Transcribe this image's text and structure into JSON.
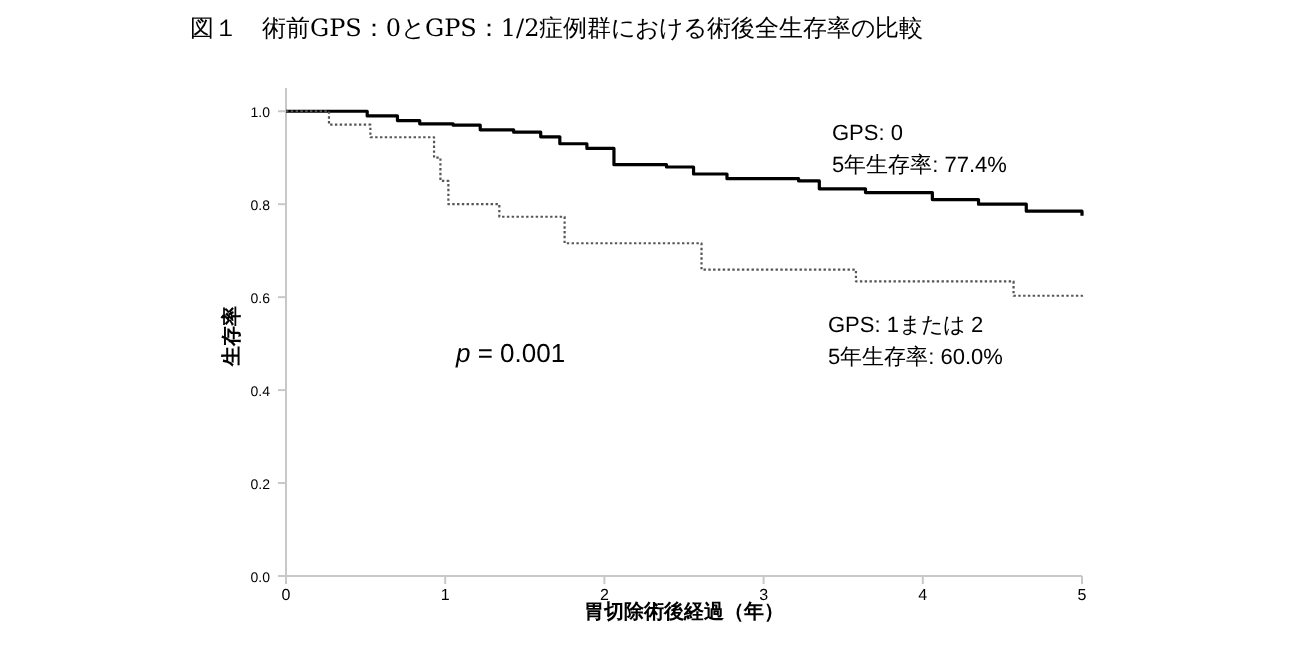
{
  "chart_data": {
    "type": "step",
    "title": "図１　術前GPS：0とGPS：1/2症例群における術後全生存率の比較",
    "xlabel": "胃切除術後経過（年）",
    "ylabel": "生存率",
    "xlim": [
      0,
      5
    ],
    "ylim": [
      0,
      1.05
    ],
    "xticks": [
      0,
      1,
      2,
      3,
      4,
      5
    ],
    "yticks": [
      {
        "value": 0,
        "label": "0.0"
      },
      {
        "value": 0.2,
        "label": "0.2"
      },
      {
        "value": 0.4,
        "label": "0.4"
      },
      {
        "value": 0.6,
        "label": "0.6"
      },
      {
        "value": 0.8,
        "label": "0.8"
      },
      {
        "value": 1,
        "label": "1.0"
      }
    ],
    "grid": false,
    "series": [
      {
        "name": "GPS: 0",
        "color": "#000000",
        "line_style": "solid",
        "x": [
          0,
          0.51,
          0.7,
          0.84,
          1.05,
          1.22,
          1.43,
          1.6,
          1.72,
          1.89,
          2.06,
          2.39,
          2.56,
          2.77,
          3.22,
          3.35,
          3.64,
          4.06,
          4.35,
          4.65,
          5
        ],
        "values": [
          1,
          0.99,
          0.98,
          0.973,
          0.97,
          0.96,
          0.955,
          0.945,
          0.93,
          0.92,
          0.885,
          0.88,
          0.865,
          0.855,
          0.85,
          0.833,
          0.825,
          0.81,
          0.8,
          0.785,
          0.775
        ]
      },
      {
        "name": "GPS: 1または 2",
        "color": "#555555",
        "line_style": "dotted",
        "x": [
          0,
          0.27,
          0.53,
          0.93,
          0.97,
          1.02,
          1.34,
          1.75,
          2.61,
          3.58,
          4.57,
          5
        ],
        "values": [
          1,
          0.971,
          0.944,
          0.9,
          0.85,
          0.8,
          0.773,
          0.716,
          0.659,
          0.634,
          0.603,
          0.6
        ]
      }
    ],
    "annotations": [
      "5年生存率: 77.4%",
      "5年生存率: 60.0%",
      "p = 0.001"
    ]
  }
}
